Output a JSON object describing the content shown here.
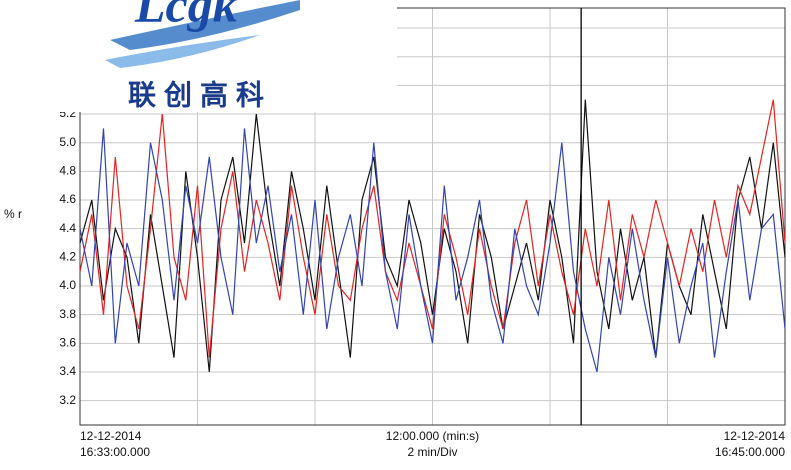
{
  "chart_data": {
    "type": "line",
    "logo": {
      "text": "Lcgk",
      "subtitle": "联创高科"
    },
    "y_label": "% r",
    "x_start_label": [
      "12-12-2014",
      "16:33:00.000"
    ],
    "x_axis_label": [
      "12:00.000 (min:s)",
      "2 min/Div"
    ],
    "x_end_label": [
      "12-12-2014",
      "16:45:00.000"
    ],
    "x": [
      0,
      0.2,
      0.4,
      0.6,
      0.8,
      1,
      1.2,
      1.4,
      1.6,
      1.8,
      2,
      2.2,
      2.4,
      2.6,
      2.8,
      3,
      3.2,
      3.4,
      3.6,
      3.8,
      4,
      4.2,
      4.4,
      4.6,
      4.8,
      5,
      5.2,
      5.4,
      5.6,
      5.8,
      6,
      6.2,
      6.4,
      6.6,
      6.8,
      7,
      7.2,
      7.4,
      7.6,
      7.8,
      8,
      8.2,
      8.4,
      8.6,
      8.8,
      9,
      9.2,
      9.4,
      9.6,
      9.8,
      10,
      10.2,
      10.4,
      10.6,
      10.8,
      11,
      11.2,
      11.4,
      11.6,
      11.8,
      12
    ],
    "series": [
      {
        "color": "#111111",
        "values": [
          4.3,
          4.6,
          3.9,
          4.4,
          4.2,
          3.6,
          4.5,
          4.0,
          3.5,
          4.8,
          4.2,
          3.4,
          4.6,
          4.9,
          4.3,
          5.2,
          4.5,
          4.0,
          4.8,
          4.4,
          3.9,
          4.7,
          4.1,
          3.5,
          4.6,
          4.9,
          4.2,
          4.0,
          4.6,
          4.3,
          3.8,
          4.4,
          4.1,
          3.6,
          4.5,
          4.2,
          3.7,
          4.0,
          4.3,
          3.9,
          4.6,
          4.2,
          3.6,
          5.3,
          4.1,
          3.7,
          4.4,
          3.9,
          4.2,
          3.5,
          4.3,
          4.0,
          3.8,
          4.5,
          4.1,
          3.7,
          4.6,
          4.9,
          4.4,
          5.0,
          4.2
        ]
      },
      {
        "color": "#e02424",
        "values": [
          4.1,
          4.5,
          3.8,
          4.9,
          4.0,
          3.7,
          4.4,
          5.2,
          4.2,
          3.9,
          4.7,
          3.5,
          4.4,
          4.8,
          4.1,
          4.6,
          4.3,
          3.9,
          4.7,
          4.2,
          3.8,
          4.5,
          4.0,
          3.9,
          4.4,
          4.7,
          4.1,
          3.9,
          4.3,
          4.0,
          3.7,
          4.5,
          4.2,
          3.8,
          4.4,
          4.0,
          3.7,
          4.3,
          4.6,
          4.0,
          4.5,
          4.1,
          3.8,
          4.4,
          4.0,
          4.6,
          3.9,
          4.5,
          4.2,
          4.6,
          4.3,
          4.0,
          4.4,
          4.1,
          4.6,
          4.2,
          4.7,
          4.5,
          4.9,
          5.3,
          4.3
        ]
      },
      {
        "color": "#3344aa",
        "values": [
          4.4,
          4.0,
          5.1,
          3.6,
          4.3,
          4.0,
          5.0,
          4.6,
          3.9,
          4.7,
          4.3,
          4.9,
          4.2,
          3.8,
          5.1,
          4.3,
          4.7,
          4.1,
          4.5,
          3.8,
          4.6,
          3.7,
          4.2,
          4.5,
          4.0,
          5.0,
          4.1,
          3.7,
          4.5,
          4.0,
          3.6,
          4.7,
          3.9,
          4.2,
          4.6,
          3.9,
          3.6,
          4.4,
          4.0,
          3.8,
          4.3,
          5.0,
          4.1,
          3.7,
          3.4,
          4.2,
          3.8,
          4.4,
          3.9,
          3.5,
          4.2,
          3.6,
          4.0,
          4.3,
          3.5,
          4.1,
          4.6,
          3.9,
          4.4,
          4.5,
          3.7
        ]
      }
    ],
    "cursor_x": 8.53,
    "xlim": [
      0,
      12
    ],
    "xticks": [
      0,
      2,
      4,
      6,
      8,
      10,
      12
    ],
    "ylim": [
      3.03,
      5.94
    ],
    "yticks": [
      3.2,
      3.4,
      3.6,
      3.8,
      {
        "value": 4,
        "label": "4.0"
      },
      4.2,
      4.4,
      4.6,
      4.8,
      {
        "value": 5,
        "label": "5.0"
      },
      5.2,
      5.4,
      5.6,
      5.8
    ],
    "grid": true
  }
}
